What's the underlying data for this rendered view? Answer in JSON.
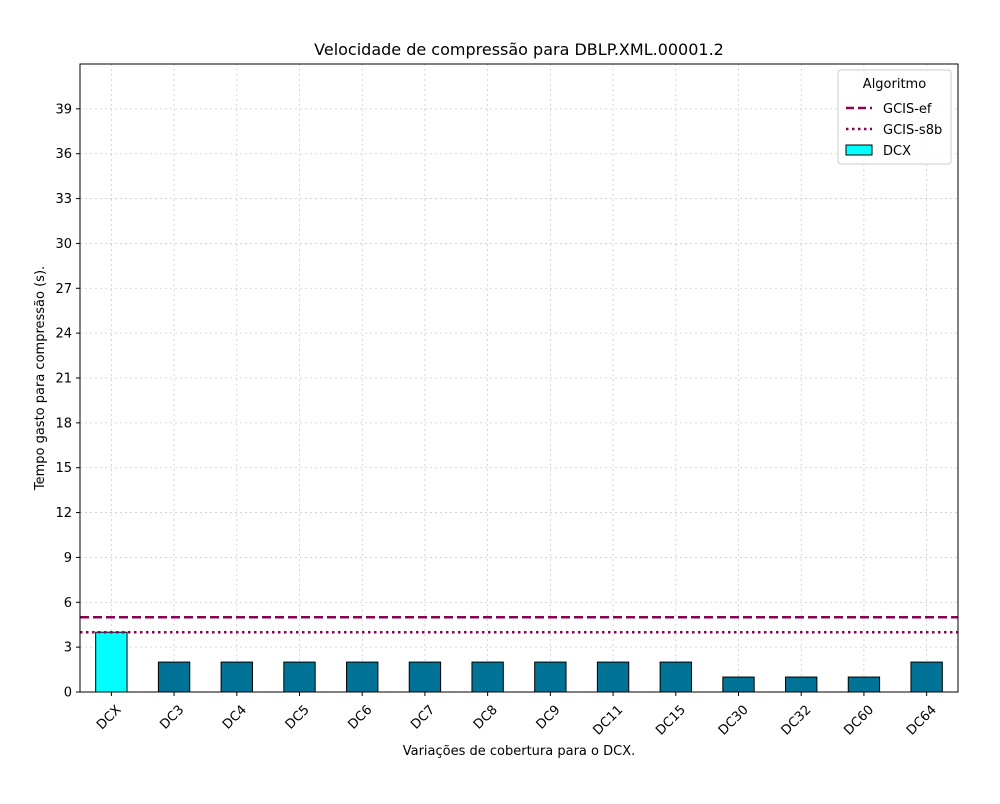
{
  "chart_data": {
    "type": "bar",
    "title": "Velocidade de compressão para  DBLP.XML.00001.2",
    "xlabel": "Variações de cobertura para o DCX.",
    "ylabel": "Tempo gasto para compressão (s).",
    "categories": [
      "DCX",
      "DC3",
      "DC4",
      "DC5",
      "DC6",
      "DC7",
      "DC8",
      "DC9",
      "DC11",
      "DC15",
      "DC30",
      "DC32",
      "DC60",
      "DC64"
    ],
    "values": [
      4,
      2,
      2,
      2,
      2,
      2,
      2,
      2,
      2,
      2,
      1,
      1,
      1,
      2
    ],
    "bar_colors": [
      "#00ffff",
      "#007396",
      "#007396",
      "#007396",
      "#007396",
      "#007396",
      "#007396",
      "#007396",
      "#007396",
      "#007396",
      "#007396",
      "#007396",
      "#007396",
      "#007396"
    ],
    "ylim": [
      0,
      42
    ],
    "yticks": [
      0,
      3,
      6,
      9,
      12,
      15,
      18,
      21,
      24,
      27,
      30,
      33,
      36,
      39
    ],
    "grid": true,
    "reference_lines": [
      {
        "name": "GCIS-ef",
        "value": 5,
        "style": "dashed",
        "color": "#8b0057"
      },
      {
        "name": "GCIS-s8b",
        "value": 4,
        "style": "dotted",
        "color": "#8b0057"
      }
    ],
    "legend": {
      "title": "Algoritmo",
      "placement": "top-right",
      "entries": [
        {
          "label": "GCIS-ef",
          "kind": "line-dashed",
          "color": "#8b0057"
        },
        {
          "label": "GCIS-s8b",
          "kind": "line-dotted",
          "color": "#8b0057"
        },
        {
          "label": "DCX",
          "kind": "patch",
          "color": "#00ffff"
        }
      ]
    }
  }
}
